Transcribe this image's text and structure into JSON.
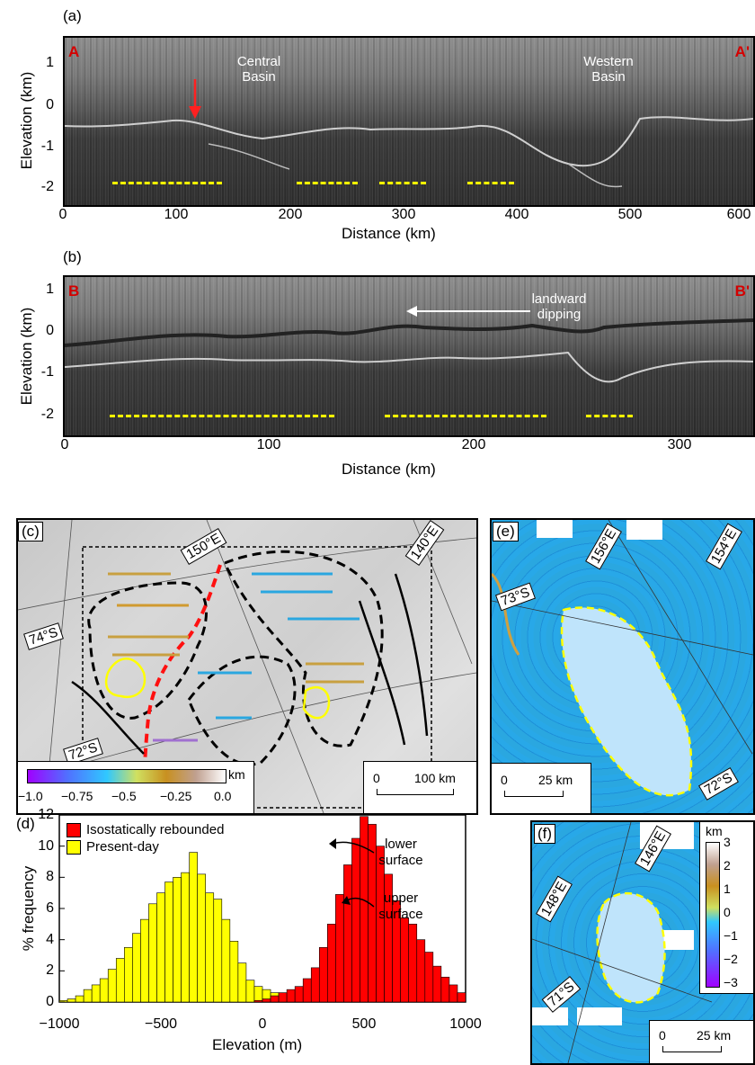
{
  "panels": {
    "a": {
      "label": "(a)",
      "start_marker": "A",
      "end_marker": "A'",
      "annotations": [
        "Central Basin",
        "Western Basin"
      ],
      "ylabel": "Elevation (km)",
      "xlabel": "Distance (km)",
      "xticks": [
        "0",
        "100",
        "200",
        "300",
        "400",
        "500",
        "600"
      ],
      "yticks": [
        "1",
        "0",
        "-1",
        "-2"
      ]
    },
    "b": {
      "label": "(b)",
      "start_marker": "B",
      "end_marker": "B'",
      "annotation": "landward dipping",
      "ylabel": "Elevation (km)",
      "xlabel": "Distance (km)",
      "xticks": [
        "0",
        "100",
        "200",
        "300"
      ],
      "yticks": [
        "1",
        "0",
        "-1",
        "-2"
      ]
    },
    "c": {
      "label": "(c)",
      "coords": [
        "150°E",
        "140°E",
        "74°S",
        "72°S"
      ],
      "colorbar_ticks": [
        "−1.0",
        "−0.75",
        "−0.5",
        "−0.25",
        "0.0"
      ],
      "colorbar_unit": "km",
      "scale_ticks": [
        "0",
        "100 km"
      ]
    },
    "d": {
      "label": "(d)",
      "ylabel": "% frequency",
      "xlabel": "Elevation (m)",
      "legend": [
        "Isostatically rebounded",
        "Present-day"
      ],
      "annotations": [
        "lower surface",
        "upper surface"
      ],
      "xticks": [
        "−1000",
        "−500",
        "0",
        "500",
        "1000"
      ],
      "yticks": [
        "0",
        "2",
        "4",
        "6",
        "8",
        "10",
        "12"
      ]
    },
    "e": {
      "label": "(e)",
      "coords": [
        "156°E",
        "154°E",
        "73°S",
        "72°S"
      ],
      "scale_ticks": [
        "0",
        "25 km"
      ]
    },
    "f": {
      "label": "(f)",
      "coords": [
        "148°E",
        "146°E",
        "71°S"
      ],
      "colorbar_unit": "km",
      "colorbar_ticks": [
        "3",
        "2",
        "1",
        "0",
        "−1",
        "−2",
        "−3"
      ],
      "scale_ticks": [
        "0",
        "25 km"
      ]
    }
  },
  "chart_data": [
    {
      "type": "bar",
      "title": "",
      "xlabel": "Elevation (m)",
      "ylabel": "% frequency",
      "xlim": [
        -1000,
        1000
      ],
      "ylim": [
        0,
        12
      ],
      "bin_width_m": 40,
      "bin_start_m": -1000,
      "series": [
        {
          "name": "Present-day",
          "color": "#ffff00",
          "values": [
            0.1,
            0.2,
            0.4,
            0.8,
            1.1,
            1.5,
            2.1,
            2.8,
            3.5,
            4.4,
            5.3,
            6.3,
            7.0,
            7.7,
            8.0,
            8.3,
            9.6,
            8.2,
            7.0,
            6.6,
            5.3,
            3.9,
            2.5,
            1.4,
            1.0,
            0.8,
            0.6,
            0.4,
            0.3,
            0.2,
            0.2,
            0.1,
            0.1,
            0,
            0,
            0,
            0,
            0,
            0,
            0,
            0,
            0,
            0,
            0,
            0,
            0,
            0,
            0,
            0,
            0
          ]
        },
        {
          "name": "Isostatically rebounded",
          "color": "#ff0000",
          "values": [
            0,
            0,
            0,
            0,
            0,
            0,
            0,
            0,
            0,
            0,
            0,
            0,
            0,
            0,
            0,
            0,
            0,
            0,
            0,
            0,
            0,
            0,
            0,
            0,
            0.1,
            0.2,
            0.4,
            0.6,
            0.8,
            1.0,
            1.5,
            2.2,
            3.5,
            5.0,
            6.9,
            8.8,
            10.5,
            11.9,
            11.4,
            10.0,
            8.2,
            6.5,
            5.4,
            5.0,
            4.0,
            3.2,
            2.3,
            1.6,
            1.1,
            0.6
          ]
        }
      ]
    }
  ]
}
